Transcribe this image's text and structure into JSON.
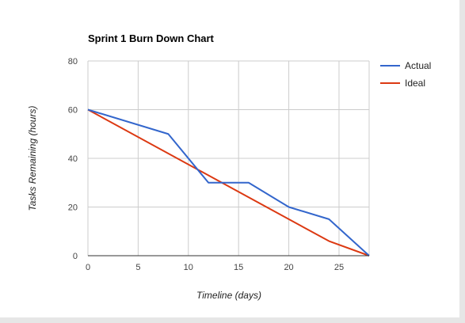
{
  "chart_data": {
    "type": "line",
    "title": "Sprint 1 Burn Down Chart",
    "xlabel": "Timeline (days)",
    "ylabel": "Tasks Remaining (hours)",
    "xlim": [
      0,
      28
    ],
    "ylim": [
      0,
      80
    ],
    "x_ticks": [
      0,
      5,
      10,
      15,
      20,
      25
    ],
    "y_ticks": [
      0,
      20,
      40,
      60,
      80
    ],
    "grid": true,
    "legend_position": "right",
    "series": [
      {
        "name": "Actual",
        "color": "#3366cc",
        "points": [
          [
            0,
            60
          ],
          [
            8,
            50
          ],
          [
            12,
            30
          ],
          [
            16,
            30
          ],
          [
            20,
            20
          ],
          [
            24,
            15
          ],
          [
            28,
            0
          ]
        ]
      },
      {
        "name": "Ideal",
        "color": "#dc3912",
        "points": [
          [
            0,
            60
          ],
          [
            24,
            6
          ],
          [
            28,
            0
          ]
        ]
      }
    ]
  }
}
